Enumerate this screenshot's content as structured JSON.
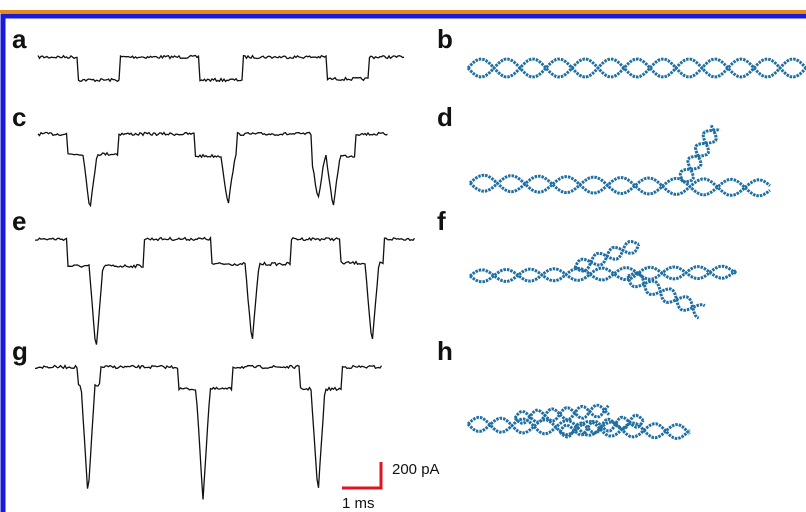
{
  "panels": [
    {
      "label": "a"
    },
    {
      "label": "b"
    },
    {
      "label": "c"
    },
    {
      "label": "d"
    },
    {
      "label": "e"
    },
    {
      "label": "f"
    },
    {
      "label": "g"
    },
    {
      "label": "h"
    }
  ],
  "scale_bar": {
    "current": "200 pA",
    "time": "1 ms"
  }
}
